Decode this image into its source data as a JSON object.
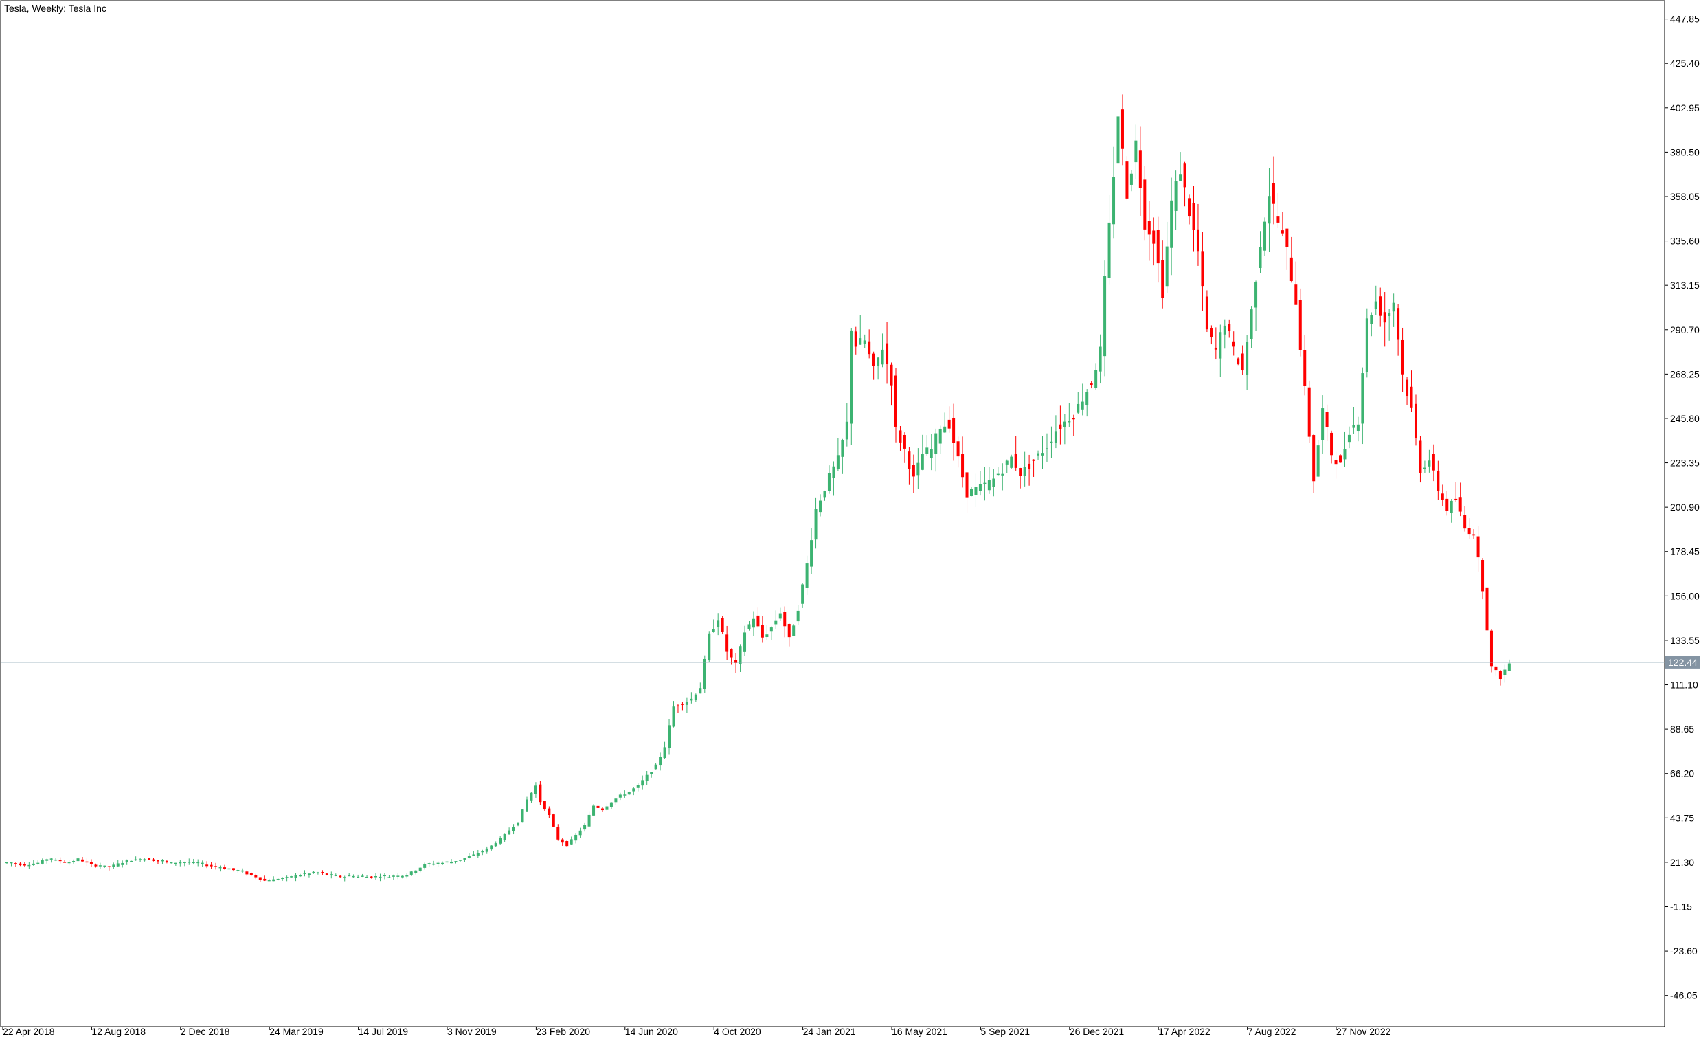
{
  "title": "Tesla, Weekly:  Tesla Inc",
  "colors": {
    "bull": "#3cb371",
    "bear": "#ff0000",
    "background": "#ffffff",
    "axis": "#000000",
    "price_line": "#8ea6b4",
    "price_tag": "#8494a3"
  },
  "chart_data": {
    "type": "candlestick",
    "interval": "weekly",
    "instrument": "Tesla Inc",
    "ylim": [
      -61.8,
      457.1
    ],
    "yticks": [
      "447.85",
      "425.40",
      "402.95",
      "380.50",
      "358.05",
      "335.60",
      "313.15",
      "290.70",
      "268.25",
      "245.80",
      "223.35",
      "200.90",
      "178.45",
      "156.00",
      "133.55",
      "111.10",
      "88.65",
      "66.20",
      "43.75",
      "21.30",
      "-1.15",
      "-23.60",
      "-46.05"
    ],
    "xticks": [
      "22 Apr 2018",
      "12 Aug 2018",
      "2 Dec 2018",
      "24 Mar 2019",
      "14 Jul 2019",
      "3 Nov 2019",
      "23 Feb 2020",
      "14 Jun 2020",
      "4 Oct 2020",
      "24 Jan 2021",
      "16 May 2021",
      "5 Sep 2021",
      "26 Dec 2021",
      "17 Apr 2022",
      "7 Aug 2022",
      "27 Nov 2022"
    ],
    "current_price": "122.44",
    "anchors": [
      [
        0,
        21
      ],
      [
        4,
        20
      ],
      [
        7,
        21
      ],
      [
        9,
        23
      ],
      [
        12,
        22
      ],
      [
        14,
        21
      ],
      [
        16,
        23
      ],
      [
        19,
        20
      ],
      [
        23,
        19
      ],
      [
        27,
        22
      ],
      [
        31,
        23
      ],
      [
        37,
        21
      ],
      [
        42,
        21
      ],
      [
        47,
        19
      ],
      [
        52,
        17
      ],
      [
        56,
        14
      ],
      [
        58,
        12
      ],
      [
        62,
        13
      ],
      [
        66,
        15
      ],
      [
        70,
        16
      ],
      [
        74,
        14
      ],
      [
        78,
        14
      ],
      [
        83,
        14
      ],
      [
        87,
        14
      ],
      [
        90,
        15
      ],
      [
        94,
        20
      ],
      [
        98,
        21
      ],
      [
        101,
        22
      ],
      [
        105,
        25
      ],
      [
        108,
        28
      ],
      [
        111,
        33
      ],
      [
        115,
        42
      ],
      [
        117,
        53
      ],
      [
        119,
        60
      ],
      [
        120,
        52
      ],
      [
        122,
        45
      ],
      [
        124,
        33
      ],
      [
        126,
        30
      ],
      [
        128,
        35
      ],
      [
        130,
        40
      ],
      [
        132,
        50
      ],
      [
        134,
        48
      ],
      [
        136,
        52
      ],
      [
        138,
        55
      ],
      [
        140,
        57
      ],
      [
        142,
        60
      ],
      [
        144,
        65
      ],
      [
        146,
        70
      ],
      [
        148,
        80
      ],
      [
        150,
        100
      ],
      [
        152,
        102
      ],
      [
        154,
        104
      ],
      [
        156,
        110
      ],
      [
        158,
        136
      ],
      [
        160,
        145
      ],
      [
        162,
        128
      ],
      [
        164,
        121
      ],
      [
        166,
        138
      ],
      [
        168,
        145
      ],
      [
        170,
        135
      ],
      [
        172,
        140
      ],
      [
        174,
        148
      ],
      [
        176,
        134
      ],
      [
        178,
        150
      ],
      [
        180,
        172
      ],
      [
        182,
        200
      ],
      [
        185,
        216
      ],
      [
        187,
        225
      ],
      [
        189,
        243
      ],
      [
        190,
        292
      ],
      [
        191,
        283
      ],
      [
        193,
        285
      ],
      [
        195,
        270
      ],
      [
        197,
        282
      ],
      [
        199,
        265
      ],
      [
        200,
        240
      ],
      [
        202,
        230
      ],
      [
        204,
        215
      ],
      [
        206,
        228
      ],
      [
        208,
        230
      ],
      [
        210,
        242
      ],
      [
        212,
        243
      ],
      [
        214,
        225
      ],
      [
        216,
        208
      ],
      [
        218,
        210
      ],
      [
        220,
        212
      ],
      [
        222,
        215
      ],
      [
        224,
        220
      ],
      [
        226,
        226
      ],
      [
        228,
        218
      ],
      [
        230,
        222
      ],
      [
        232,
        227
      ],
      [
        234,
        232
      ],
      [
        236,
        240
      ],
      [
        238,
        244
      ],
      [
        240,
        248
      ],
      [
        242,
        256
      ],
      [
        244,
        264
      ],
      [
        246,
        280
      ],
      [
        247,
        315
      ],
      [
        249,
        370
      ],
      [
        250,
        400
      ],
      [
        252,
        360
      ],
      [
        254,
        385
      ],
      [
        256,
        345
      ],
      [
        258,
        337
      ],
      [
        260,
        310
      ],
      [
        262,
        355
      ],
      [
        264,
        372
      ],
      [
        266,
        350
      ],
      [
        268,
        330
      ],
      [
        270,
        290
      ],
      [
        272,
        280
      ],
      [
        274,
        295
      ],
      [
        276,
        280
      ],
      [
        278,
        270
      ],
      [
        280,
        300
      ],
      [
        282,
        335
      ],
      [
        284,
        360
      ],
      [
        286,
        345
      ],
      [
        288,
        330
      ],
      [
        290,
        305
      ],
      [
        292,
        260
      ],
      [
        294,
        215
      ],
      [
        296,
        250
      ],
      [
        298,
        228
      ],
      [
        300,
        222
      ],
      [
        302,
        240
      ],
      [
        304,
        245
      ],
      [
        306,
        295
      ],
      [
        308,
        305
      ],
      [
        310,
        295
      ],
      [
        312,
        305
      ],
      [
        314,
        268
      ],
      [
        316,
        250
      ],
      [
        318,
        220
      ],
      [
        320,
        225
      ],
      [
        322,
        210
      ],
      [
        324,
        200
      ],
      [
        326,
        205
      ],
      [
        328,
        190
      ],
      [
        330,
        188
      ],
      [
        332,
        160
      ],
      [
        334,
        120
      ],
      [
        336,
        115
      ],
      [
        338,
        122
      ]
    ]
  }
}
